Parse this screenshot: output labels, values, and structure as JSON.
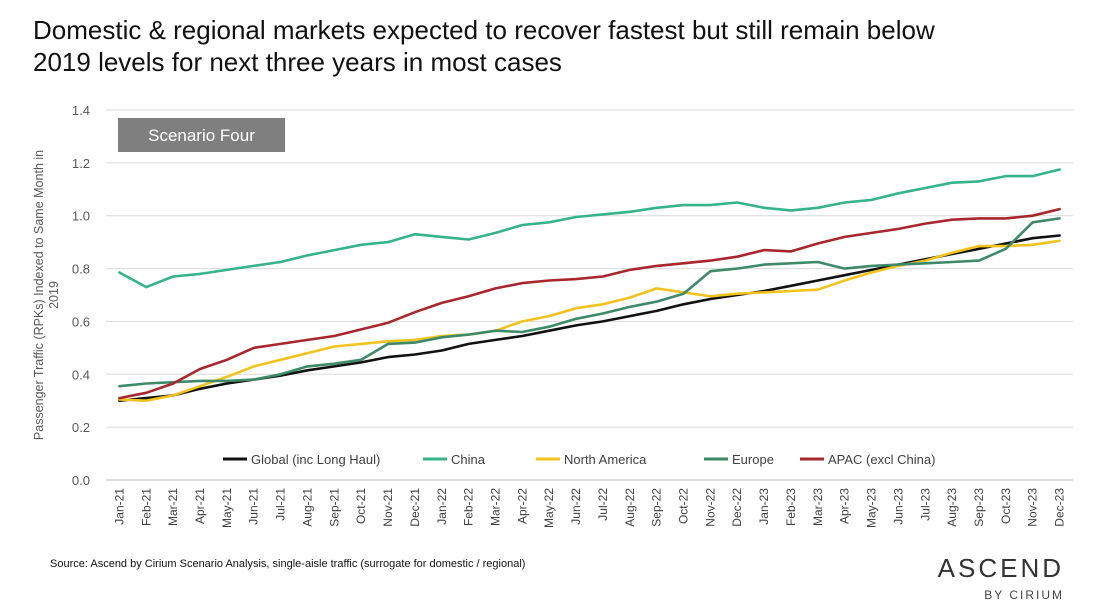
{
  "title": {
    "line1": "Domestic & regional markets expected to recover fastest but still remain below",
    "line2": "2019 levels for next three years in most cases"
  },
  "source": "Source: Ascend by Cirium Scenario Analysis, single-aisle traffic (surrogate for domestic / regional)",
  "brand": {
    "name": "ASCEND",
    "sub": "BY CIRIUM"
  },
  "chart_data": {
    "type": "line",
    "badge": "Scenario Four",
    "ylabel": "Passenger Traffic (RPKs) Indexed to Same Month in 2019",
    "ylim": [
      0.0,
      1.4
    ],
    "yticks": [
      "0.0",
      "0.2",
      "0.4",
      "0.6",
      "0.8",
      "1.0",
      "1.2",
      "1.4"
    ],
    "grid": true,
    "legend_position": "bottom-center",
    "categories": [
      "Jan-21",
      "Feb-21",
      "Mar-21",
      "Apr-21",
      "May-21",
      "Jun-21",
      "Jul-21",
      "Aug-21",
      "Sep-21",
      "Oct-21",
      "Nov-21",
      "Dec-21",
      "Jan-22",
      "Feb-22",
      "Mar-22",
      "Apr-22",
      "May-22",
      "Jun-22",
      "Jul-22",
      "Aug-22",
      "Sep-22",
      "Oct-22",
      "Nov-22",
      "Dec-22",
      "Jan-23",
      "Feb-23",
      "Mar-23",
      "Apr-23",
      "May-23",
      "Jun-23",
      "Jul-23",
      "Aug-23",
      "Sep-23",
      "Oct-23",
      "Nov-23",
      "Dec-23"
    ],
    "series": [
      {
        "name": "Global (inc Long Haul)",
        "color": "#111111",
        "values": [
          0.3,
          0.31,
          0.32,
          0.345,
          0.365,
          0.38,
          0.395,
          0.415,
          0.43,
          0.445,
          0.465,
          0.475,
          0.49,
          0.515,
          0.53,
          0.545,
          0.565,
          0.585,
          0.6,
          0.62,
          0.64,
          0.665,
          0.685,
          0.7,
          0.715,
          0.735,
          0.755,
          0.775,
          0.795,
          0.815,
          0.835,
          0.855,
          0.875,
          0.895,
          0.915,
          0.925
        ]
      },
      {
        "name": "China",
        "color": "#35b48a",
        "values": [
          0.785,
          0.73,
          0.77,
          0.78,
          0.795,
          0.81,
          0.825,
          0.85,
          0.87,
          0.89,
          0.9,
          0.93,
          0.92,
          0.91,
          0.935,
          0.965,
          0.975,
          0.995,
          1.005,
          1.015,
          1.03,
          1.04,
          1.04,
          1.05,
          1.03,
          1.02,
          1.03,
          1.05,
          1.06,
          1.085,
          1.105,
          1.125,
          1.13,
          1.15,
          1.15,
          1.175
        ]
      },
      {
        "name": "North America",
        "color": "#f2c31e",
        "values": [
          0.305,
          0.3,
          0.32,
          0.355,
          0.39,
          0.43,
          0.455,
          0.48,
          0.505,
          0.515,
          0.525,
          0.53,
          0.545,
          0.55,
          0.565,
          0.6,
          0.62,
          0.65,
          0.665,
          0.69,
          0.725,
          0.71,
          0.695,
          0.705,
          0.71,
          0.715,
          0.72,
          0.755,
          0.785,
          0.81,
          0.83,
          0.86,
          0.885,
          0.885,
          0.89,
          0.905
        ]
      },
      {
        "name": "Europe",
        "color": "#3d8a6b",
        "values": [
          0.355,
          0.365,
          0.37,
          0.375,
          0.375,
          0.38,
          0.4,
          0.43,
          0.44,
          0.455,
          0.515,
          0.52,
          0.54,
          0.55,
          0.565,
          0.56,
          0.58,
          0.61,
          0.63,
          0.655,
          0.675,
          0.705,
          0.79,
          0.8,
          0.815,
          0.82,
          0.825,
          0.8,
          0.81,
          0.815,
          0.82,
          0.825,
          0.83,
          0.875,
          0.975,
          0.99
        ]
      },
      {
        "name": "APAC (excl China)",
        "color": "#a8272d",
        "values": [
          0.31,
          0.33,
          0.365,
          0.42,
          0.455,
          0.5,
          0.515,
          0.53,
          0.545,
          0.57,
          0.595,
          0.635,
          0.67,
          0.695,
          0.725,
          0.745,
          0.755,
          0.76,
          0.77,
          0.795,
          0.81,
          0.82,
          0.83,
          0.845,
          0.87,
          0.865,
          0.895,
          0.92,
          0.935,
          0.95,
          0.97,
          0.985,
          0.99,
          0.99,
          1.0,
          1.025
        ]
      }
    ]
  }
}
